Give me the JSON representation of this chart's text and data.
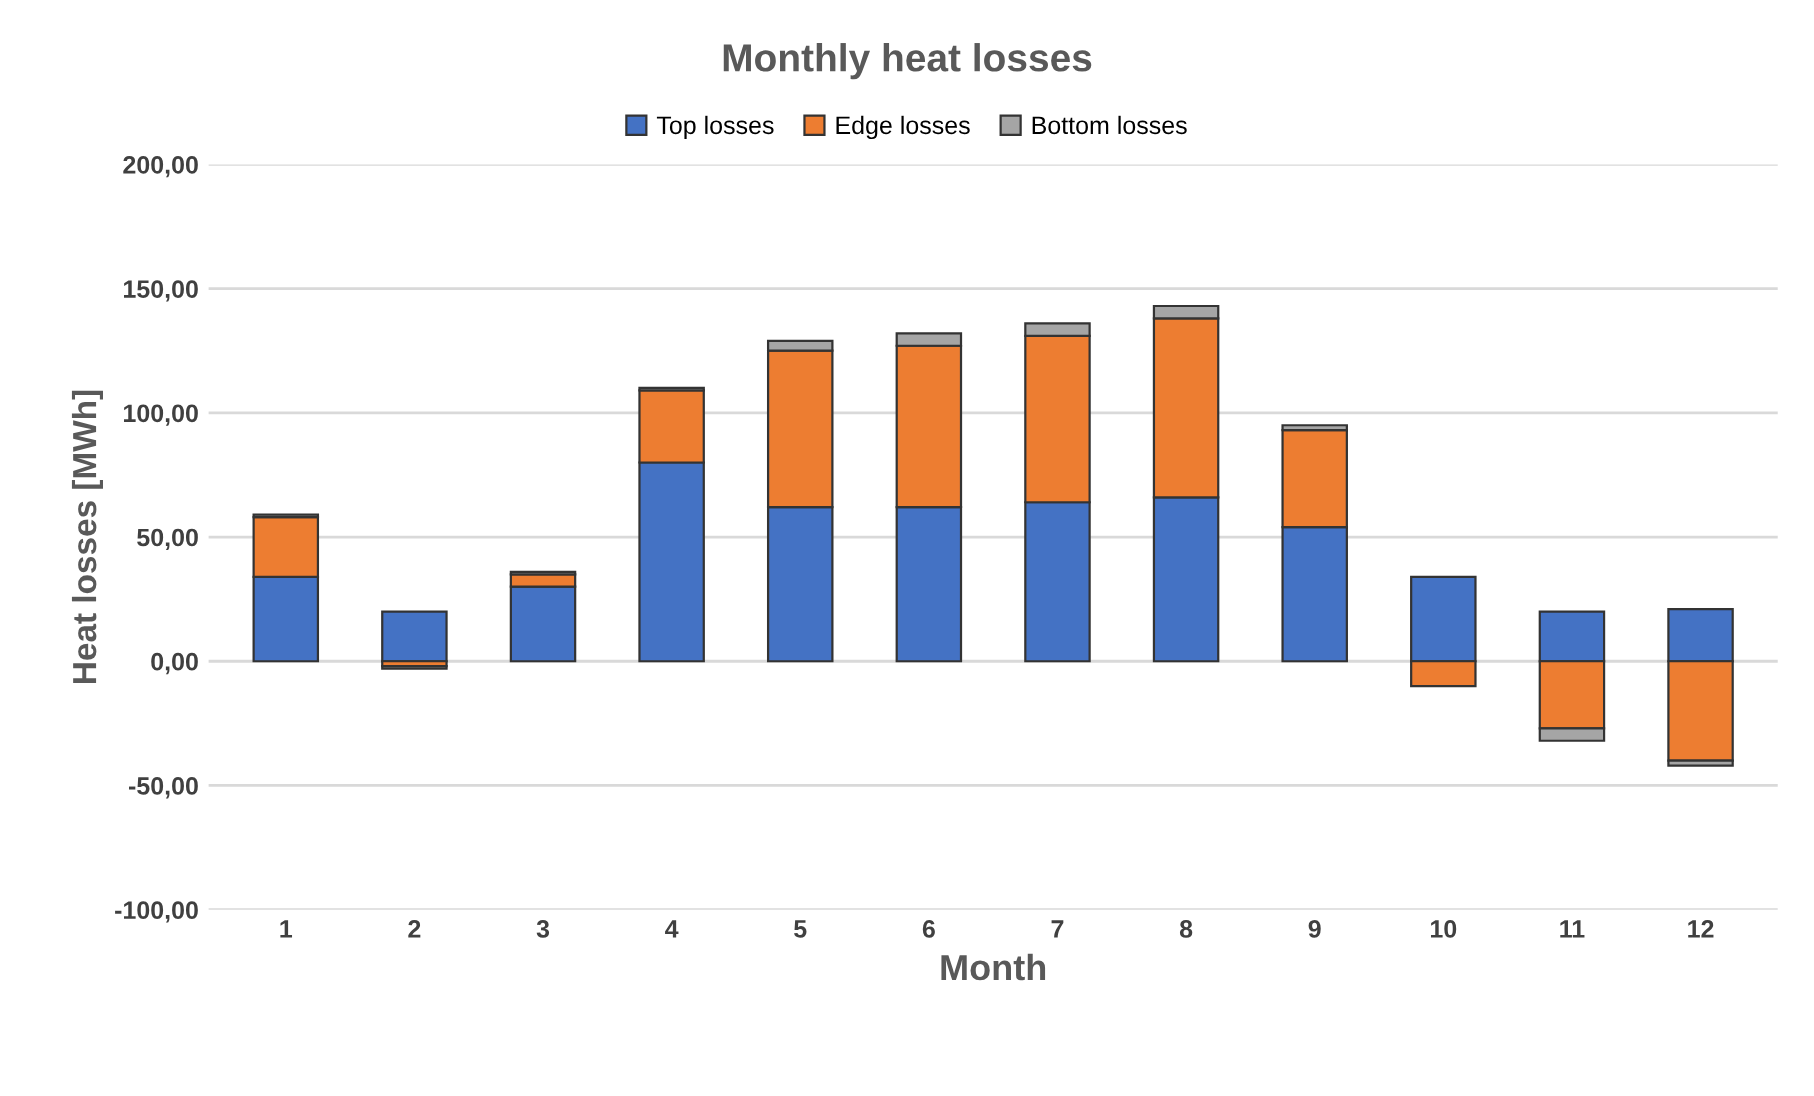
{
  "chart_data": {
    "type": "bar",
    "title": "Monthly heat losses",
    "xlabel": "Month",
    "ylabel": "Heat losses [MWh]",
    "categories": [
      "1",
      "2",
      "3",
      "4",
      "5",
      "6",
      "7",
      "8",
      "9",
      "10",
      "11",
      "12"
    ],
    "stacked": true,
    "series": [
      {
        "name": "Top losses",
        "color": "#4472c4",
        "values": [
          34,
          20,
          30,
          80,
          62,
          62,
          64,
          66,
          54,
          34,
          20,
          21
        ]
      },
      {
        "name": "Edge losses",
        "color": "#ed7d31",
        "values": [
          24,
          -2,
          5,
          29,
          63,
          65,
          67,
          72,
          39,
          -10,
          -27,
          -40
        ]
      },
      {
        "name": "Bottom losses",
        "color": "#a5a5a5",
        "values": [
          1,
          -1,
          1,
          1,
          4,
          5,
          5,
          5,
          2,
          null,
          -5,
          -2
        ]
      }
    ],
    "ylim": [
      -100,
      200
    ],
    "yticks": [
      {
        "value": -100,
        "label": "-100,00"
      },
      {
        "value": -50,
        "label": "-50,00"
      },
      {
        "value": 0,
        "label": "0,00"
      },
      {
        "value": 50,
        "label": "50,00"
      },
      {
        "value": 100,
        "label": "100,00"
      },
      {
        "value": 150,
        "label": "150,00"
      },
      {
        "value": 200,
        "label": "200,00"
      }
    ],
    "grid": "y",
    "legend": "top"
  }
}
